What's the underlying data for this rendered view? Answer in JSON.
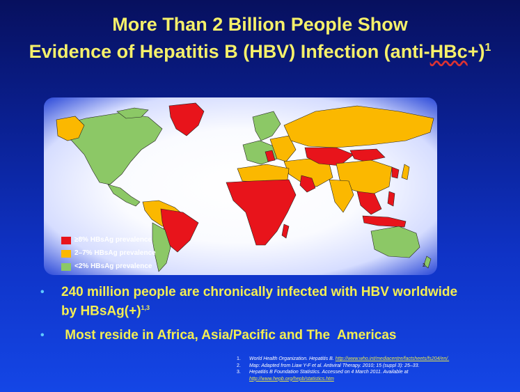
{
  "title": {
    "line1": "More Than 2 Billion People Show",
    "line2_pre": "Evidence of Hepatitis B (HBV) Infection (anti-",
    "line2_mark": "HBc",
    "line2_post": "+)",
    "sup": "1"
  },
  "legend": {
    "items": [
      {
        "label": "≥8% HBsAg prevalence",
        "color": "#e8141b"
      },
      {
        "label": "2–7% HBsAg prevalence",
        "color": "#fbb800"
      },
      {
        "label": "<2% HBsAg prevalence",
        "color": "#8cc866"
      }
    ]
  },
  "map": {
    "footnote_number": "2"
  },
  "bullets": [
    {
      "text_line1": "240 million people are chronically infected with HBV worldwide",
      "text_line2": "by HBsAg(+)",
      "sup": "1,3"
    },
    {
      "text": " Most reside in Africa, Asia/Pacific and The  Americas"
    }
  ],
  "references": [
    {
      "n": "1.",
      "text": "World Health Organization. Hepatitis B. ",
      "link": "http://www.who.int/mediacentre/factsheets/fs204/en/."
    },
    {
      "n": "2.",
      "text": "Map: Adapted from Liaw Y-F et al. Antiviral Therapy. 2010; 15 (suppl 3): 25–33.",
      "link": ""
    },
    {
      "n": "3.",
      "text": "Hepatitis B Foundation Statistics. Accessed on 4 March 2011. Available at ",
      "link": "http://www.hepb.org/hepb/statistics.htm"
    }
  ],
  "colors": {
    "high": "#e8141b",
    "mid": "#fbb800",
    "low": "#8cc866",
    "title": "#f5f06a"
  }
}
